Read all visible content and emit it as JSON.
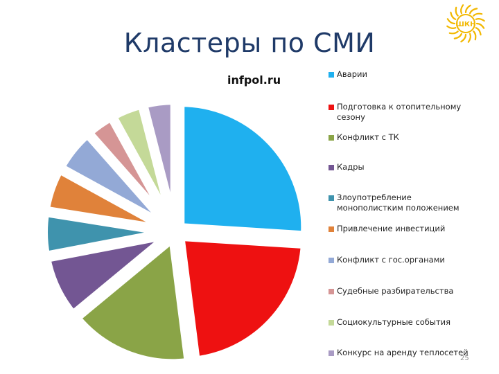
{
  "slide": {
    "title": "Кластеры по СМИ",
    "page_number": "25",
    "logo": {
      "icon": "sun-logo-icon",
      "text": "ШКН",
      "color": "#f2b800"
    }
  },
  "chart_data": {
    "type": "pie",
    "title": "infpol.ru",
    "exploded": true,
    "start_angle_deg": 0,
    "direction": "clockwise",
    "legend_position": "right",
    "slices": [
      {
        "label": "Аварии",
        "value": 26,
        "color": "#1fb0ef"
      },
      {
        "label": "Подготовка к отопительному сезону",
        "value": 22,
        "color": "#ee1111"
      },
      {
        "label": "Конфликт с ТК",
        "value": 16,
        "color": "#8aa447"
      },
      {
        "label": "Кадры",
        "value": 8,
        "color": "#735693"
      },
      {
        "label": "Злоупотребление монополистким положением",
        "value": 5.5,
        "color": "#3f93ad"
      },
      {
        "label": "Привлечение инвестиций",
        "value": 5.5,
        "color": "#e0823a"
      },
      {
        "label": "Конфликт с гос.органами",
        "value": 5.5,
        "color": "#93a9d6"
      },
      {
        "label": "Судебные разбирательства",
        "value": 3.5,
        "color": "#d59595"
      },
      {
        "label": "Социокультурные события",
        "value": 4,
        "color": "#c4d998"
      },
      {
        "label": "Конкурс на аренду теплосетей",
        "value": 4,
        "color": "#a99bc4"
      }
    ]
  }
}
